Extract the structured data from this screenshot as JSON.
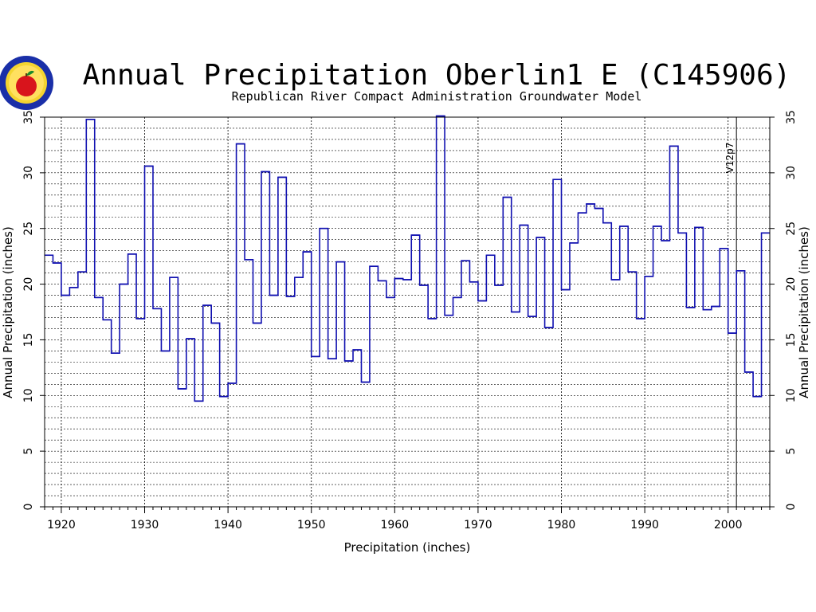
{
  "chart_data": {
    "type": "step",
    "title": "Annual Precipitation Oberlin1 E (C145906)",
    "subtitle": "Republican River Compact Administration Groundwater Model",
    "xlabel": "Precipitation (inches)",
    "ylabel": "Annual Precipitation (inches)",
    "ylabel_right": "Annual Precipitation (inches)",
    "annotation": {
      "text": "V12p7",
      "x": 2001
    },
    "xlim": [
      1918,
      2005
    ],
    "ylim": [
      0,
      35
    ],
    "x_ticks": [
      1920,
      1930,
      1940,
      1950,
      1960,
      1970,
      1980,
      1990,
      2000
    ],
    "x_tick_labels": [
      "1920",
      "1930",
      "1940",
      "1950",
      "1960",
      "1970",
      "1980",
      "1990",
      "2000"
    ],
    "y_ticks": [
      0,
      5,
      10,
      15,
      20,
      25,
      30,
      35
    ],
    "y_tick_labels": [
      "0",
      "5",
      "10",
      "15",
      "20",
      "25",
      "30",
      "35"
    ],
    "grid": {
      "major_x": "dashed",
      "minor_y": "dashed",
      "y_minor_step": 1
    },
    "line_color": "#1010b0",
    "series": [
      {
        "x": [
          1918,
          1919,
          1920,
          1921,
          1922,
          1923,
          1924,
          1925,
          1926,
          1927,
          1928,
          1929,
          1930,
          1931,
          1932,
          1933,
          1934,
          1935,
          1936,
          1937,
          1938,
          1939,
          1940,
          1941,
          1942,
          1943,
          1944,
          1945,
          1946,
          1947,
          1948,
          1949,
          1950,
          1951,
          1952,
          1953,
          1954,
          1955,
          1956,
          1957,
          1958,
          1959,
          1960,
          1961,
          1962,
          1963,
          1964,
          1965,
          1966,
          1967,
          1968,
          1969,
          1970,
          1971,
          1972,
          1973,
          1974,
          1975,
          1976,
          1977,
          1978,
          1979,
          1980,
          1981,
          1982,
          1983,
          1984,
          1985,
          1986,
          1987,
          1988,
          1989,
          1990,
          1991,
          1992,
          1993,
          1994,
          1995,
          1996,
          1997,
          1998,
          1999,
          2000,
          2001,
          2002,
          2003,
          2004
        ],
        "values": [
          22.6,
          21.9,
          19.0,
          19.7,
          21.1,
          34.8,
          18.8,
          16.8,
          13.8,
          20.0,
          22.7,
          16.9,
          30.6,
          17.8,
          14.0,
          20.6,
          10.6,
          15.1,
          9.5,
          18.1,
          16.5,
          9.9,
          11.1,
          32.6,
          22.2,
          16.5,
          30.1,
          19.0,
          29.6,
          18.9,
          20.6,
          22.9,
          13.5,
          25.0,
          13.3,
          22.0,
          13.1,
          14.1,
          11.2,
          21.6,
          20.3,
          18.8,
          20.5,
          20.4,
          24.4,
          19.9,
          16.9,
          35.1,
          17.2,
          18.8,
          22.1,
          20.2,
          18.5,
          22.6,
          19.9,
          27.8,
          17.5,
          25.3,
          17.1,
          24.2,
          16.1,
          29.4,
          19.5,
          23.7,
          26.4,
          27.2,
          26.8,
          25.5,
          20.4,
          25.2,
          21.1,
          16.9,
          20.7,
          25.2,
          23.9,
          32.4,
          24.6,
          17.9,
          25.1,
          17.7,
          18.0,
          23.2,
          15.6,
          21.2,
          12.1,
          9.9,
          24.6
        ]
      }
    ]
  }
}
